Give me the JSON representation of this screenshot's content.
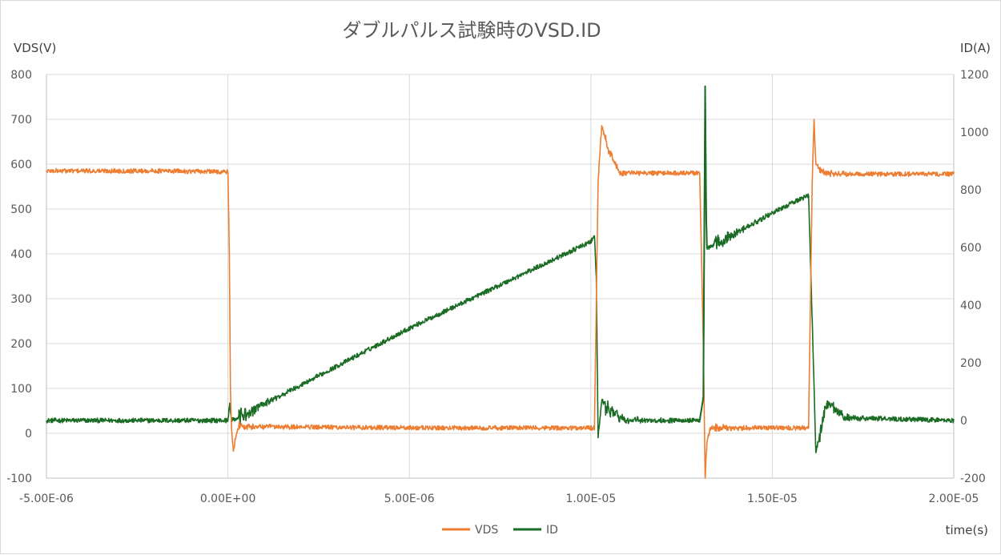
{
  "chart_data": {
    "type": "line",
    "title": "ダブルパルス試験時のVSD.ID",
    "xlabel": "time(s)",
    "ylabel_left": "VDS(V)",
    "ylabel_right": "ID(A)",
    "xlim": [
      -5e-06,
      2e-05
    ],
    "ylim_left": [
      -100,
      800
    ],
    "ylim_right": [
      -200,
      1200
    ],
    "x_ticks": [
      -5e-06,
      0,
      5e-06,
      1e-05,
      1.5e-05,
      2e-05
    ],
    "x_tick_labels": [
      "-5.00E-06",
      "0.00E+00",
      "5.00E-06",
      "1.00E-05",
      "1.50E-05",
      "2.00E-05"
    ],
    "y_left_ticks": [
      -100,
      0,
      100,
      200,
      300,
      400,
      500,
      600,
      700,
      800
    ],
    "y_left_tick_labels": [
      "-100",
      "0",
      "100",
      "200",
      "300",
      "400",
      "500",
      "600",
      "700",
      "800"
    ],
    "y_right_ticks": [
      -200,
      0,
      200,
      400,
      600,
      800,
      1000,
      1200
    ],
    "y_right_tick_labels": [
      "-200",
      "0",
      "200",
      "400",
      "600",
      "800",
      "1000",
      "1200"
    ],
    "grid": true,
    "legend_position": "bottom",
    "series": [
      {
        "name": "VDS",
        "axis": "left",
        "color": "#ed7d31",
        "x": [
          -5e-06,
          -2e-06,
          0,
          4e-08,
          7e-08,
          1e-07,
          1.5e-07,
          2e-07,
          3e-07,
          5e-06,
          1.01e-05,
          1.02e-05,
          1.03e-05,
          1.05e-05,
          1.08e-05,
          1.1e-05,
          1.3e-05,
          1.31e-05,
          1.315e-05,
          1.32e-05,
          1.33e-05,
          1.35e-05,
          1.6e-05,
          1.61e-05,
          1.615e-05,
          1.62e-05,
          1.64e-05,
          1.7e-05,
          2e-05
        ],
        "y": [
          585,
          585,
          583,
          400,
          100,
          10,
          -40,
          -15,
          15,
          12,
          12,
          560,
          685,
          630,
          580,
          580,
          580,
          200,
          -100,
          -20,
          12,
          12,
          12,
          560,
          700,
          600,
          580,
          578,
          578
        ]
      },
      {
        "name": "ID",
        "axis": "right",
        "color": "#1a6b23",
        "x": [
          -5e-06,
          -2e-06,
          0,
          5e-08,
          1e-07,
          3e-07,
          5e-06,
          1e-05,
          1.01e-05,
          1.015e-05,
          1.02e-05,
          1.03e-05,
          1.05e-05,
          1.08e-05,
          1.1e-05,
          1.3e-05,
          1.31e-05,
          1.315e-05,
          1.318e-05,
          1.32e-05,
          1.33e-05,
          1.5e-05,
          1.58e-05,
          1.6e-05,
          1.61e-05,
          1.62e-05,
          1.65e-05,
          1.7e-05,
          2e-05
        ],
        "y": [
          0,
          0,
          0,
          60,
          0,
          10,
          320,
          620,
          640,
          500,
          -60,
          70,
          40,
          10,
          0,
          0,
          80,
          1160,
          700,
          600,
          600,
          720,
          770,
          780,
          350,
          -110,
          60,
          10,
          0
        ]
      }
    ]
  }
}
